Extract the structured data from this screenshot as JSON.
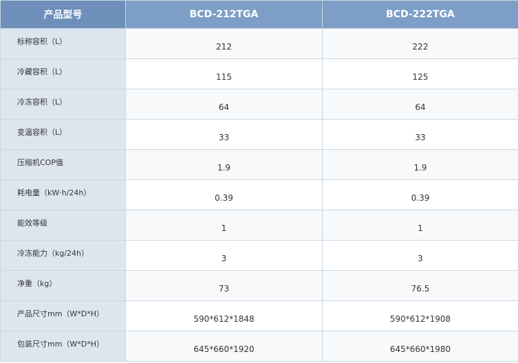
{
  "table": {
    "headers": [
      "产品型号",
      "BCD-212TGA",
      "BCD-222TGA"
    ],
    "rows": [
      {
        "label": "标称容积（L）",
        "a": "212",
        "b": "222"
      },
      {
        "label": "冷藏容积（L）",
        "a": "115",
        "b": "125"
      },
      {
        "label": "冷冻容积（L）",
        "a": "64",
        "b": "64"
      },
      {
        "label": "变温容积（L）",
        "a": "33",
        "b": "33"
      },
      {
        "label": "压缩机COP值",
        "a": "1.9",
        "b": "1.9"
      },
      {
        "label": "耗电量（kW·h/24h）",
        "a": "0.39",
        "b": "0.39"
      },
      {
        "label": "能效等级",
        "a": "1",
        "b": "1"
      },
      {
        "label": "冷冻能力（kg/24h）",
        "a": "3",
        "b": "3"
      },
      {
        "label": "净重（kg）",
        "a": "73",
        "b": "76.5"
      },
      {
        "label": "产品尺寸mm（W*D*H）",
        "a": "590*612*1848",
        "b": "590*612*1908"
      },
      {
        "label": "包装尺寸mm（W*D*H）",
        "a": "645*660*1920",
        "b": "645*660*1980"
      }
    ]
  },
  "colors": {
    "header_bg": "#7d9ec6",
    "label_bg": "#dde6ee",
    "border": "#c9d7e3"
  }
}
